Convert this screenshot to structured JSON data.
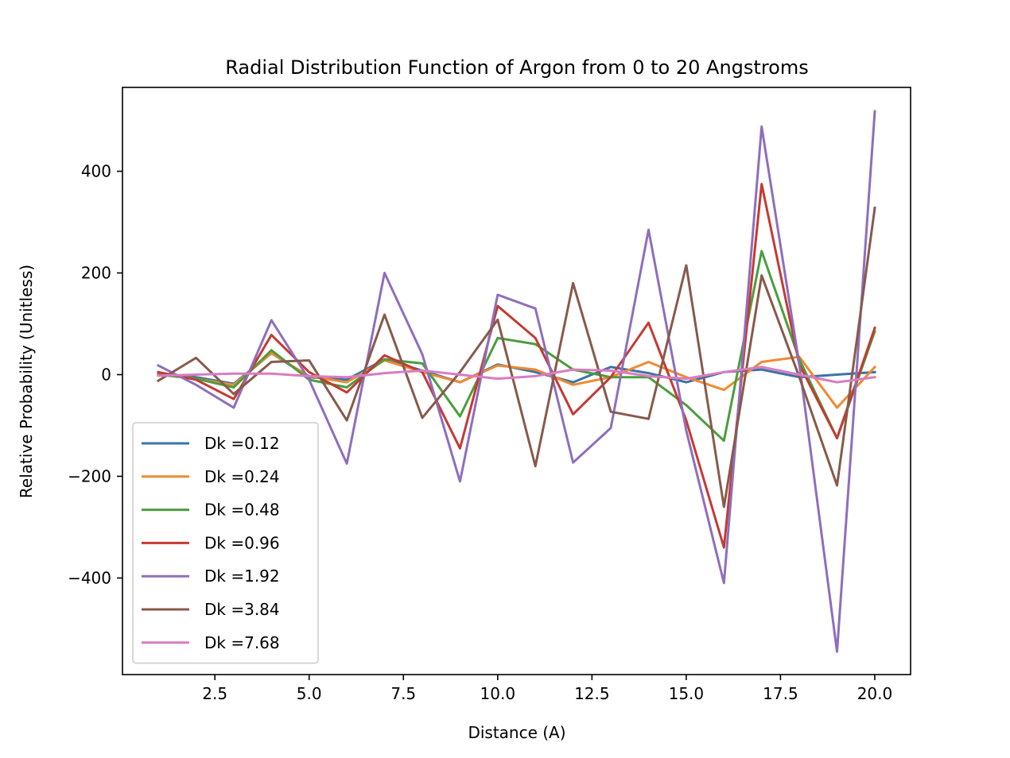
{
  "chart_data": {
    "type": "line",
    "title": "Radial Distribution Function of Argon from 0 to 20 Angstroms",
    "xlabel": "Distance (A)",
    "ylabel": "Relative Probability (Unitless)",
    "xlim": [
      0.05,
      20.95
    ],
    "ylim": [
      -590,
      565
    ],
    "xticks": [
      2.5,
      5.0,
      7.5,
      10.0,
      12.5,
      15.0,
      17.5,
      20.0
    ],
    "xtick_labels": [
      "2.5",
      "5.0",
      "7.5",
      "10.0",
      "12.5",
      "15.0",
      "17.5",
      "20.0"
    ],
    "yticks": [
      -400,
      -200,
      0,
      200,
      400
    ],
    "ytick_labels": [
      "−400",
      "−200",
      "0",
      "200",
      "400"
    ],
    "grid": false,
    "legend_position": "lower-left",
    "x": [
      1,
      2,
      3,
      4,
      5,
      6,
      7,
      8,
      9,
      10,
      11,
      12,
      13,
      14,
      15,
      16,
      17,
      18,
      19,
      20
    ],
    "series": [
      {
        "name": "Dk =0.12",
        "color": "#3a73a8",
        "values": [
          3,
          -5,
          -18,
          42,
          -5,
          -10,
          30,
          8,
          -15,
          20,
          5,
          -15,
          15,
          3,
          -15,
          5,
          10,
          -5,
          0,
          5
        ]
      },
      {
        "name": "Dk =0.24",
        "color": "#ef8a32",
        "values": [
          2,
          -8,
          -20,
          42,
          -3,
          -15,
          28,
          5,
          -15,
          18,
          10,
          -20,
          -5,
          25,
          -5,
          -30,
          25,
          35,
          -65,
          15
        ]
      },
      {
        "name": "Dk =0.48",
        "color": "#4a9e3d",
        "values": [
          0,
          -8,
          -25,
          48,
          -10,
          -25,
          30,
          22,
          -82,
          72,
          60,
          10,
          -5,
          -5,
          -60,
          -130,
          243,
          30,
          -125,
          85
        ]
      },
      {
        "name": "Dk =0.96",
        "color": "#c53a32",
        "values": [
          5,
          -10,
          -48,
          78,
          5,
          -35,
          38,
          5,
          -145,
          135,
          72,
          -78,
          -5,
          102,
          -90,
          -340,
          375,
          20,
          -125,
          92
        ]
      },
      {
        "name": "Dk =1.92",
        "color": "#8e6ebd",
        "values": [
          18,
          -20,
          -65,
          107,
          -10,
          -175,
          200,
          40,
          -210,
          157,
          130,
          -173,
          -105,
          285,
          -110,
          -410,
          488,
          20,
          -545,
          518
        ]
      },
      {
        "name": "Dk =3.84",
        "color": "#875a4c",
        "values": [
          -12,
          33,
          -38,
          25,
          28,
          -90,
          118,
          -85,
          5,
          108,
          -180,
          180,
          -73,
          -87,
          215,
          -260,
          195,
          -5,
          -218,
          328
        ]
      },
      {
        "name": "Dk =7.68",
        "color": "#d97cc2",
        "values": [
          -2,
          0,
          2,
          2,
          -3,
          -5,
          3,
          8,
          0,
          -8,
          -3,
          10,
          8,
          -3,
          -8,
          5,
          15,
          0,
          -15,
          -5
        ]
      }
    ]
  }
}
